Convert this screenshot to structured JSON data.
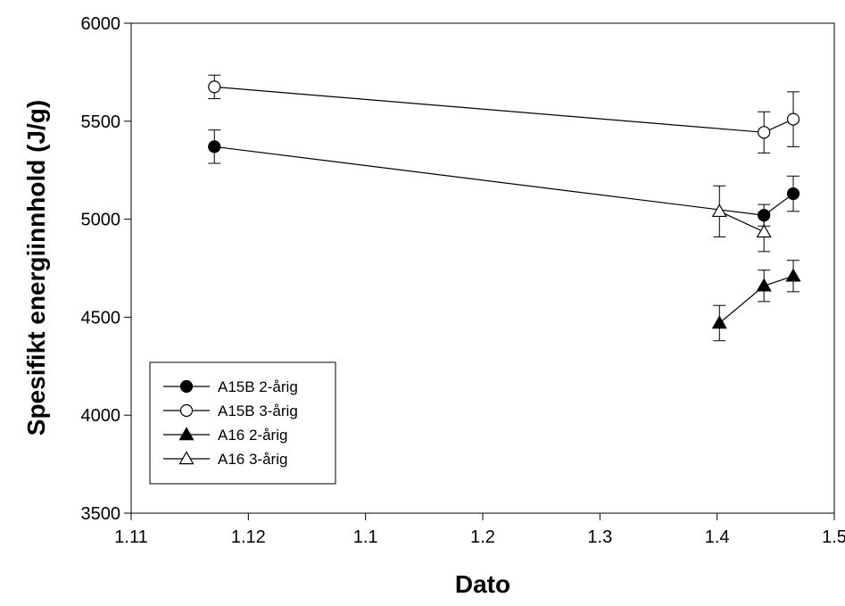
{
  "chart_data": {
    "type": "line",
    "title": "",
    "xlabel": "Dato",
    "ylabel": "Spesifikt energiinnhold (J/g)",
    "x_ticks": [
      {
        "label": "1.11",
        "pos": 0.0
      },
      {
        "label": "1.12",
        "pos": 0.1
      },
      {
        "label": "1.1",
        "pos": 0.2
      },
      {
        "label": "1.2",
        "pos": 0.3
      },
      {
        "label": "1.3",
        "pos": 0.4
      },
      {
        "label": "1.4",
        "pos": 0.5
      },
      {
        "label": "1.5",
        "pos": 0.6
      }
    ],
    "xlim": [
      0.0,
      0.6
    ],
    "ylim": [
      3500,
      6000
    ],
    "y_ticks": [
      3500,
      4000,
      4500,
      5000,
      5500,
      6000
    ],
    "grid": false,
    "legend_position": "bottom-left",
    "series": [
      {
        "name": "A15B 2-årig",
        "marker": "circle",
        "fill": "#000000",
        "x": [
          0.071,
          0.54,
          0.565
        ],
        "y": [
          5370,
          5020,
          5130
        ],
        "err": [
          85,
          55,
          90
        ]
      },
      {
        "name": "A15B 3-årig",
        "marker": "circle",
        "fill": "#ffffff",
        "x": [
          0.071,
          0.54,
          0.565
        ],
        "y": [
          5675,
          5443,
          5510
        ],
        "err": [
          60,
          105,
          140
        ]
      },
      {
        "name": "A16 2-årig",
        "marker": "triangle",
        "fill": "#000000",
        "x": [
          0.502,
          0.54,
          0.565
        ],
        "y": [
          4470,
          4660,
          4710
        ],
        "err": [
          90,
          80,
          80
        ]
      },
      {
        "name": "A16 3-årig",
        "marker": "triangle",
        "fill": "#ffffff",
        "x": [
          0.502,
          0.54
        ],
        "y": [
          5040,
          4935
        ],
        "err": [
          130,
          100
        ]
      }
    ]
  }
}
